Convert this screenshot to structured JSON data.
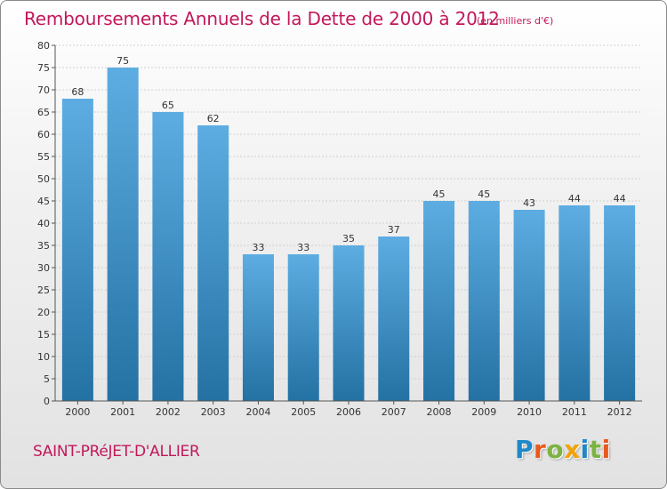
{
  "header": {
    "title": "Remboursements Annuels de la Dette de 2000 à 2012",
    "subtitle": "(en milliers d'€)"
  },
  "footer": {
    "place": "SAINT-PRéJET-D'ALLIER",
    "brand": "Proxiti",
    "brand_letters": [
      {
        "ch": "P",
        "color": "#1e88c8"
      },
      {
        "ch": "r",
        "color": "#e8591c"
      },
      {
        "ch": "o",
        "color": "#7cb342"
      },
      {
        "ch": "x",
        "color": "#f0a30a"
      },
      {
        "ch": "i",
        "color": "#1e88c8"
      },
      {
        "ch": "t",
        "color": "#7cb342"
      },
      {
        "ch": "i",
        "color": "#e8591c"
      }
    ]
  },
  "colors": {
    "bar_top": "#5dade2",
    "bar_bottom": "#2471a3",
    "axis": "#555555",
    "grid": "#d0d0d0",
    "accent": "#c2185b"
  },
  "chart_data": {
    "type": "bar",
    "title": "Remboursements Annuels de la Dette de 2000 à 2012",
    "subtitle": "(en milliers d'€)",
    "categories": [
      "2000",
      "2001",
      "2002",
      "2003",
      "2004",
      "2005",
      "2006",
      "2007",
      "2008",
      "2009",
      "2010",
      "2011",
      "2012"
    ],
    "values": [
      68,
      75,
      65,
      62,
      33,
      33,
      35,
      37,
      45,
      45,
      43,
      44,
      44
    ],
    "ylim": [
      0,
      80
    ],
    "yticks": [
      0,
      5,
      10,
      15,
      20,
      25,
      30,
      35,
      40,
      45,
      50,
      55,
      60,
      65,
      70,
      75,
      80
    ],
    "xlabel": "",
    "ylabel": "",
    "grid": true
  }
}
